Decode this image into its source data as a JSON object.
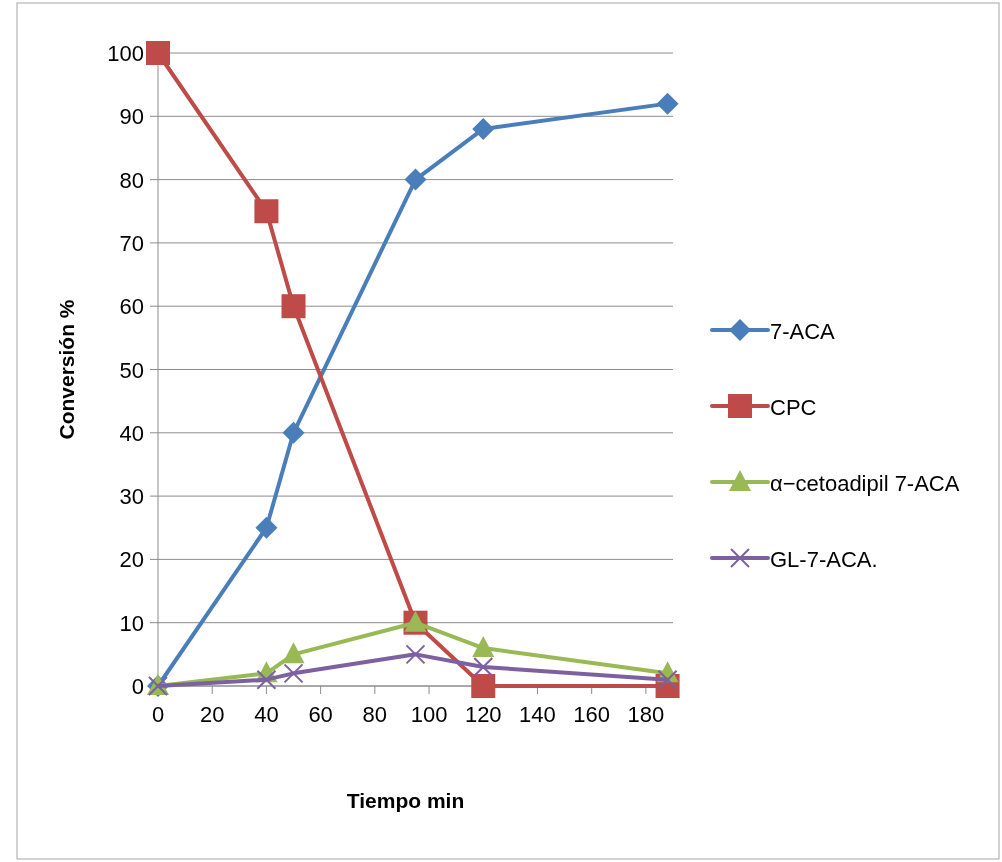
{
  "chart_data": {
    "type": "line",
    "xlabel": "Tiempo min",
    "ylabel": "Conversión %",
    "x": [
      0,
      40,
      50,
      95,
      120,
      188
    ],
    "series": [
      {
        "name": "7-ACA",
        "color": "#4a7ebb",
        "marker": "diamond",
        "values": [
          0,
          25,
          40,
          80,
          88,
          92
        ]
      },
      {
        "name": "CPC",
        "color": "#be4b48",
        "marker": "square",
        "values": [
          100,
          75,
          60,
          10,
          0,
          0
        ]
      },
      {
        "name": "α−cetoadipil 7-ACA",
        "color": "#98b954",
        "marker": "triangle",
        "values": [
          0,
          2,
          5,
          10,
          6,
          2
        ]
      },
      {
        "name": "GL-7-ACA.",
        "color": "#7d60a0",
        "marker": "cross",
        "values": [
          0,
          1,
          2,
          5,
          3,
          1
        ]
      }
    ],
    "xlim": [
      0,
      190
    ],
    "xticks": [
      0,
      20,
      40,
      60,
      80,
      100,
      120,
      140,
      160,
      180
    ],
    "ylim": [
      0,
      100
    ],
    "yticks": [
      0,
      10,
      20,
      30,
      40,
      50,
      60,
      70,
      80,
      90,
      100
    ],
    "grid": "y",
    "legend": "right"
  }
}
